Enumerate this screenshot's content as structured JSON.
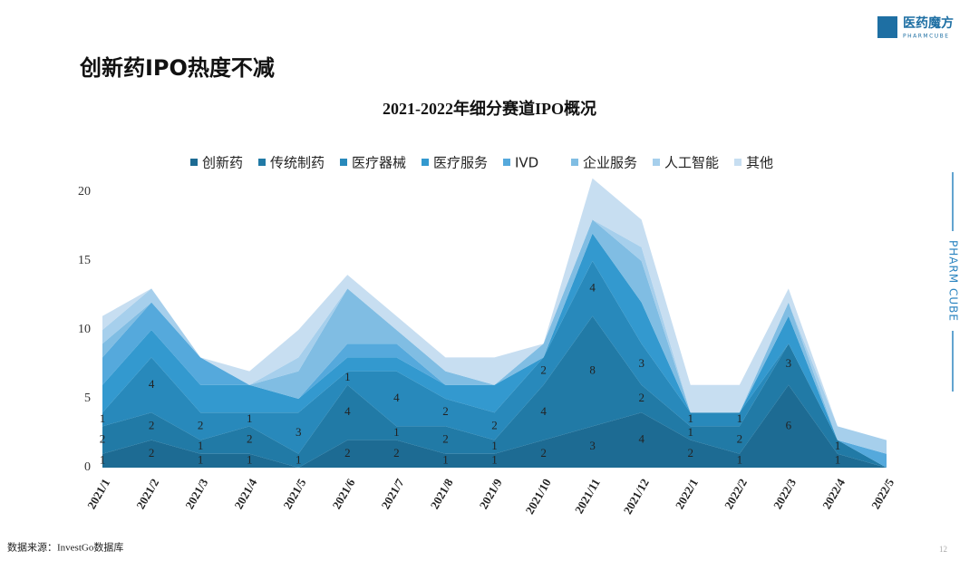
{
  "header": {
    "title": "创新药IPO热度不减",
    "logo": "医药魔方",
    "logo_sub": "PHARMCUBE",
    "side_brand": "PHARM CUBE"
  },
  "footer": {
    "source": "数据来源：InvestGo数据库",
    "page": "12"
  },
  "chart_data": {
    "type": "stacked-area",
    "title": "2021-2022年细分赛道IPO概况",
    "categories": [
      "2021/1",
      "2021/2",
      "2021/3",
      "2021/4",
      "2021/5",
      "2021/6",
      "2021/7",
      "2021/8",
      "2021/9",
      "2021/10",
      "2021/11",
      "2021/12",
      "2022/1",
      "2022/2",
      "2022/3",
      "2022/4",
      "2022/5"
    ],
    "series": [
      {
        "name": "创新药",
        "color": "#1d6b93",
        "values": [
          1,
          2,
          1,
          1,
          0,
          2,
          2,
          1,
          1,
          2,
          3,
          4,
          2,
          1,
          6,
          1,
          0
        ]
      },
      {
        "name": "传统制药",
        "color": "#217aa6",
        "values": [
          2,
          2,
          1,
          2,
          1,
          4,
          1,
          2,
          1,
          4,
          8,
          2,
          1,
          2,
          3,
          1,
          0
        ]
      },
      {
        "name": "医疗器械",
        "color": "#2889bb",
        "values": [
          1,
          4,
          2,
          1,
          3,
          1,
          4,
          2,
          2,
          2,
          4,
          3,
          1,
          1,
          0,
          0,
          0
        ]
      },
      {
        "name": "医疗服务",
        "color": "#3399cf",
        "values": [
          2,
          2,
          2,
          2,
          1,
          1,
          1,
          1,
          2,
          0,
          2,
          3,
          0,
          0,
          2,
          0,
          0
        ]
      },
      {
        "name": "IVD",
        "color": "#55a9dc",
        "values": [
          2,
          2,
          2,
          0,
          0,
          1,
          1,
          0,
          0,
          0,
          0,
          0,
          0,
          0,
          0,
          0,
          1
        ]
      },
      {
        "name": "企业服务",
        "color": "#80bde3",
        "values": [
          1,
          0,
          0,
          0,
          2,
          4,
          1,
          1,
          0,
          1,
          1,
          3,
          0,
          0,
          1,
          0,
          0
        ]
      },
      {
        "name": "人工智能",
        "color": "#a6cfec",
        "values": [
          1,
          1,
          0,
          0,
          1,
          0,
          0,
          0,
          0,
          0,
          0,
          1,
          0,
          0,
          0,
          1,
          1
        ]
      },
      {
        "name": "其他",
        "color": "#c7def1",
        "values": [
          1,
          0,
          0,
          1,
          2,
          1,
          1,
          1,
          2,
          0,
          3,
          2,
          2,
          2,
          1,
          0,
          0
        ]
      }
    ],
    "labeled_series": 3,
    "ylim": [
      0,
      20
    ],
    "yticks": [
      0,
      5,
      10,
      15,
      20
    ]
  }
}
